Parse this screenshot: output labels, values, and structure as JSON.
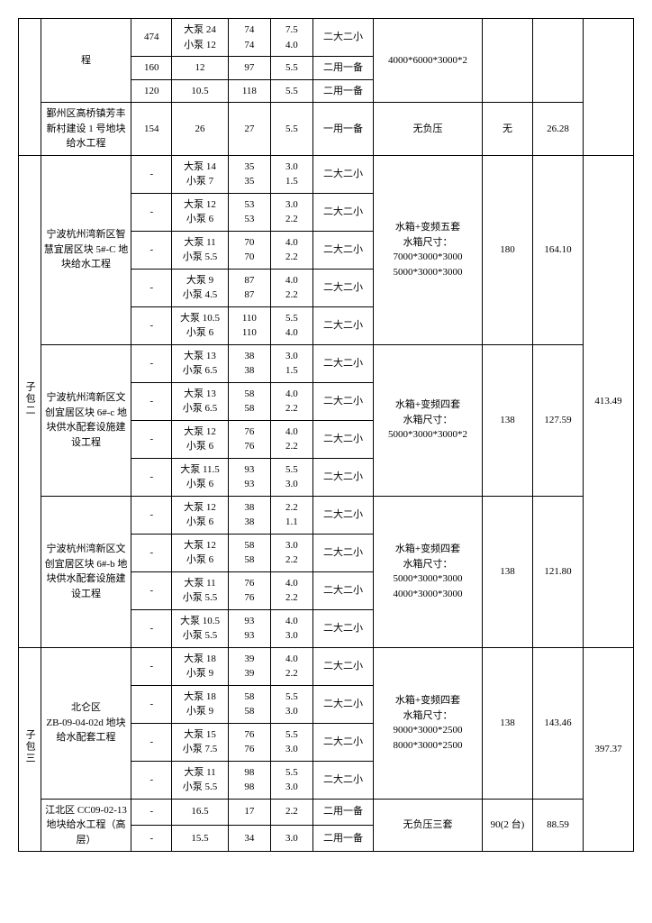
{
  "subpackage2": "子包二",
  "subpackage3": "子包三",
  "r0_proj": "程",
  "r0_c2": "474",
  "r0_c3a": "大泵 24",
  "r0_c3b": "小泵 12",
  "r0_c4a": "74",
  "r0_c4b": "74",
  "r0_c5a": "7.5",
  "r0_c5b": "4.0",
  "r0_c6": "二大二小",
  "r0_c7": "4000*6000*3000*2",
  "r1_c2": "160",
  "r1_c3": "12",
  "r1_c4": "97",
  "r1_c5": "5.5",
  "r1_c6": "二用一备",
  "r2_c2": "120",
  "r2_c3": "10.5",
  "r2_c4": "118",
  "r2_c5": "5.5",
  "r2_c6": "二用一备",
  "r3_proj": "鄞州区高桥镇芳丰新村建设 1 号地块给水工程",
  "r3_c2": "154",
  "r3_c3": "26",
  "r3_c4": "27",
  "r3_c5": "5.5",
  "r3_c6": "一用一备",
  "r3_c7": "无负压",
  "r3_c8": "无",
  "r3_c9": "26.28",
  "p5_proj": "宁波杭州湾新区智慧宜居区块 5#-C 地块给水工程",
  "p5_c2": "-",
  "p5_c7": "水箱+变频五套\n水箱尺寸：\n7000*3000*3000\n5000*3000*3000",
  "p5_c8": "180",
  "p5_c9": "164.10",
  "p5_r1_3a": "大泵 14",
  "p5_r1_3b": "小泵 7",
  "p5_r1_4a": "35",
  "p5_r1_4b": "35",
  "p5_r1_5a": "3.0",
  "p5_r1_5b": "1.5",
  "p5_r1_6": "二大二小",
  "p5_r2_3a": "大泵 12",
  "p5_r2_3b": "小泵 6",
  "p5_r2_4a": "53",
  "p5_r2_4b": "53",
  "p5_r2_5a": "3.0",
  "p5_r2_5b": "2.2",
  "p5_r2_6": "二大二小",
  "p5_r3_3a": "大泵 11",
  "p5_r3_3b": "小泵 5.5",
  "p5_r3_4a": "70",
  "p5_r3_4b": "70",
  "p5_r3_5a": "4.0",
  "p5_r3_5b": "2.2",
  "p5_r3_6": "二大二小",
  "p5_r4_3a": "大泵 9",
  "p5_r4_3b": "小泵 4.5",
  "p5_r4_4a": "87",
  "p5_r4_4b": "87",
  "p5_r4_5a": "4.0",
  "p5_r4_5b": "2.2",
  "p5_r4_6": "二大二小",
  "p5_r5_3a": "大泵 10.5",
  "p5_r5_3b": "小泵 6",
  "p5_r5_4a": "110",
  "p5_r5_4b": "110",
  "p5_r5_5a": "5.5",
  "p5_r5_5b": "4.0",
  "p5_r5_6": "二大二小",
  "p6_proj": "宁波杭州湾新区文创宜居区块 6#-c 地块供水配套设施建设工程",
  "p6_c2": "-",
  "p6_c7": "水箱+变频四套\n水箱尺寸：\n5000*3000*3000*2",
  "p6_c8": "138",
  "p6_c9": "127.59",
  "p6_r1_3a": "大泵 13",
  "p6_r1_3b": "小泵 6.5",
  "p6_r1_4a": "38",
  "p6_r1_4b": "38",
  "p6_r1_5a": "3.0",
  "p6_r1_5b": "1.5",
  "p6_r1_6": "二大二小",
  "p6_r2_3a": "大泵 13",
  "p6_r2_3b": "小泵 6.5",
  "p6_r2_4a": "58",
  "p6_r2_4b": "58",
  "p6_r2_5a": "4.0",
  "p6_r2_5b": "2.2",
  "p6_r2_6": "二大二小",
  "p6_r3_3a": "大泵 12",
  "p6_r3_3b": "小泵 6",
  "p6_r3_4a": "76",
  "p6_r3_4b": "76",
  "p6_r3_5a": "4.0",
  "p6_r3_5b": "2.2",
  "p6_r3_6": "二大二小",
  "p6_r4_3a": "大泵 11.5",
  "p6_r4_3b": "小泵 6",
  "p6_r4_4a": "93",
  "p6_r4_4b": "93",
  "p6_r4_5a": "5.5",
  "p6_r4_5b": "3.0",
  "p6_r4_6": "二大二小",
  "p7_proj": "宁波杭州湾新区文创宜居区块 6#-b 地块供水配套设施建设工程",
  "p7_c2": "-",
  "p7_c7": "水箱+变频四套\n水箱尺寸：\n5000*3000*3000\n4000*3000*3000",
  "p7_c8": "138",
  "p7_c9": "121.80",
  "p7_r1_3a": "大泵 12",
  "p7_r1_3b": "小泵 6",
  "p7_r1_4a": "38",
  "p7_r1_4b": "38",
  "p7_r1_5a": "2.2",
  "p7_r1_5b": "1.1",
  "p7_r1_6": "二大二小",
  "p7_r2_3a": "大泵 12",
  "p7_r2_3b": "小泵 6",
  "p7_r2_4a": "58",
  "p7_r2_4b": "58",
  "p7_r2_5a": "3.0",
  "p7_r2_5b": "2.2",
  "p7_r2_6": "二大二小",
  "p7_r3_3a": "大泵 11",
  "p7_r3_3b": "小泵 5.5",
  "p7_r3_4a": "76",
  "p7_r3_4b": "76",
  "p7_r3_5a": "4.0",
  "p7_r3_5b": "2.2",
  "p7_r3_6": "二大二小",
  "p7_r4_3a": "大泵 10.5",
  "p7_r4_3b": "小泵 5.5",
  "p7_r4_4a": "93",
  "p7_r4_4b": "93",
  "p7_r4_5a": "4.0",
  "p7_r4_5b": "3.0",
  "p7_r4_6": "二大二小",
  "sub2_total": "413.49",
  "p8_proj": "北仑区\nZB-09-04-02d 地块给水配套工程",
  "p8_c2": "-",
  "p8_c7": "水箱+变频四套\n水箱尺寸：\n9000*3000*2500\n8000*3000*2500",
  "p8_c8": "138",
  "p8_c9": "143.46",
  "p8_r1_3a": "大泵 18",
  "p8_r1_3b": "小泵 9",
  "p8_r1_4a": "39",
  "p8_r1_4b": "39",
  "p8_r1_5a": "4.0",
  "p8_r1_5b": "2.2",
  "p8_r1_6": "二大二小",
  "p8_r2_3a": "大泵 18",
  "p8_r2_3b": "小泵 9",
  "p8_r2_4a": "58",
  "p8_r2_4b": "58",
  "p8_r2_5a": "5.5",
  "p8_r2_5b": "3.0",
  "p8_r2_6": "二大二小",
  "p8_r3_3a": "大泵 15",
  "p8_r3_3b": "小泵 7.5",
  "p8_r3_4a": "76",
  "p8_r3_4b": "76",
  "p8_r3_5a": "5.5",
  "p8_r3_5b": "3.0",
  "p8_r3_6": "二大二小",
  "p8_r4_3a": "大泵 11",
  "p8_r4_3b": "小泵 5.5",
  "p8_r4_4a": "98",
  "p8_r4_4b": "98",
  "p8_r4_5a": "5.5",
  "p8_r4_5b": "3.0",
  "p8_r4_6": "二大二小",
  "p9_proj": "江北区 CC09-02-13 地块给水工程（高层）",
  "p9_c2": "-",
  "p9_c7": "无负压三套",
  "p9_c8": "90(2 台)",
  "p9_c9": "88.59",
  "p9_r1_3": "16.5",
  "p9_r1_4": "17",
  "p9_r1_5": "2.2",
  "p9_r1_6": "二用一备",
  "p9_r2_3": "15.5",
  "p9_r2_4": "34",
  "p9_r2_5": "3.0",
  "p9_r2_6": "二用一备",
  "sub3_total": "397.37"
}
